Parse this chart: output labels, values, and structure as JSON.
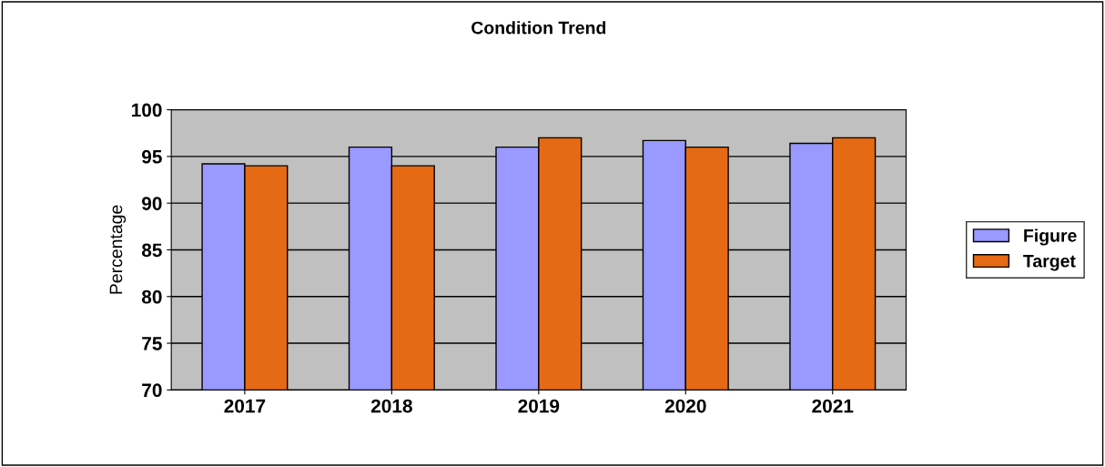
{
  "chart_data": {
    "type": "bar",
    "title": "Condition Trend",
    "ylabel": "Percentage",
    "categories": [
      "2017",
      "2018",
      "2019",
      "2020",
      "2021"
    ],
    "series": [
      {
        "name": "Figure",
        "color": "#9999ff",
        "values": [
          94.2,
          96.0,
          96.0,
          96.7,
          96.4
        ]
      },
      {
        "name": "Target",
        "color": "#e66914",
        "values": [
          94.0,
          94.0,
          97.0,
          96.0,
          97.0
        ]
      }
    ],
    "ylim": [
      70,
      100
    ],
    "yticks": [
      70,
      75,
      80,
      85,
      90,
      95,
      100
    ],
    "grid": "y",
    "legend": "right"
  }
}
